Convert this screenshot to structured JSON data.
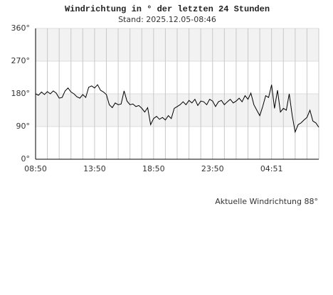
{
  "chart_data": {
    "type": "line",
    "title": "Windrichtung in ° der letzten 24 Stunden",
    "subtitle": "Stand: 2025.12.05-08:46",
    "annotation": "Aktuelle Windrichtung 88°",
    "x": [
      0,
      0.25,
      0.5,
      0.75,
      1,
      1.25,
      1.5,
      1.75,
      2,
      2.25,
      2.5,
      2.75,
      3,
      3.25,
      3.5,
      3.75,
      4,
      4.25,
      4.5,
      4.75,
      5,
      5.25,
      5.5,
      5.75,
      6,
      6.25,
      6.5,
      6.75,
      7,
      7.25,
      7.5,
      7.75,
      8,
      8.25,
      8.5,
      8.75,
      9,
      9.25,
      9.5,
      9.75,
      10,
      10.25,
      10.5,
      10.75,
      11,
      11.25,
      11.5,
      11.75,
      12,
      12.25,
      12.5,
      12.75,
      13,
      13.25,
      13.5,
      13.75,
      14,
      14.25,
      14.5,
      14.75,
      15,
      15.25,
      15.5,
      15.75,
      16,
      16.25,
      16.5,
      16.75,
      17,
      17.25,
      17.5,
      17.75,
      18,
      18.25,
      18.5,
      18.75,
      19,
      19.25,
      19.5,
      19.75,
      20,
      20.25,
      20.5,
      20.75,
      21,
      21.25,
      21.5,
      21.75,
      22,
      22.25,
      22.5,
      22.75,
      23,
      23.25,
      23.5,
      23.75,
      24
    ],
    "series": [
      {
        "name": "Windrichtung",
        "color": "#000000",
        "values": [
          180,
          176,
          185,
          178,
          186,
          180,
          188,
          182,
          168,
          170,
          188,
          196,
          185,
          180,
          172,
          168,
          178,
          170,
          198,
          202,
          196,
          205,
          190,
          185,
          178,
          150,
          142,
          155,
          150,
          152,
          188,
          160,
          150,
          152,
          145,
          148,
          140,
          130,
          142,
          95,
          112,
          118,
          110,
          115,
          108,
          120,
          112,
          140,
          145,
          150,
          158,
          150,
          162,
          155,
          165,
          148,
          160,
          158,
          150,
          165,
          160,
          145,
          158,
          162,
          150,
          158,
          165,
          155,
          160,
          168,
          158,
          175,
          165,
          182,
          150,
          135,
          120,
          145,
          175,
          170,
          205,
          140,
          190,
          130,
          140,
          135,
          180,
          120,
          75,
          95,
          100,
          108,
          115,
          135,
          105,
          100,
          88
        ]
      }
    ],
    "xlim": [
      0,
      24
    ],
    "xticks": [
      {
        "value": 0,
        "label": "08:50"
      },
      {
        "value": 1,
        "label": null
      },
      {
        "value": 2,
        "label": null
      },
      {
        "value": 3,
        "label": null
      },
      {
        "value": 4,
        "label": null
      },
      {
        "value": 5,
        "label": "13:50"
      },
      {
        "value": 6,
        "label": null
      },
      {
        "value": 7,
        "label": null
      },
      {
        "value": 8,
        "label": null
      },
      {
        "value": 9,
        "label": null
      },
      {
        "value": 10,
        "label": "18:50"
      },
      {
        "value": 11,
        "label": null
      },
      {
        "value": 12,
        "label": null
      },
      {
        "value": 13,
        "label": null
      },
      {
        "value": 14,
        "label": null
      },
      {
        "value": 15,
        "label": "23:50"
      },
      {
        "value": 16,
        "label": null
      },
      {
        "value": 17,
        "label": null
      },
      {
        "value": 18,
        "label": null
      },
      {
        "value": 19,
        "label": null
      },
      {
        "value": 20,
        "label": "04:51"
      },
      {
        "value": 21,
        "label": null
      },
      {
        "value": 22,
        "label": null
      },
      {
        "value": 23,
        "label": null
      },
      {
        "value": 24,
        "label": null
      }
    ],
    "ylim": [
      0,
      360
    ],
    "yticks": [
      {
        "value": 0,
        "label": "0°"
      },
      {
        "value": 90,
        "label": "90°"
      },
      {
        "value": 180,
        "label": "180°"
      },
      {
        "value": 270,
        "label": "270°"
      },
      {
        "value": 360,
        "label": "360°"
      }
    ],
    "grid": true
  }
}
